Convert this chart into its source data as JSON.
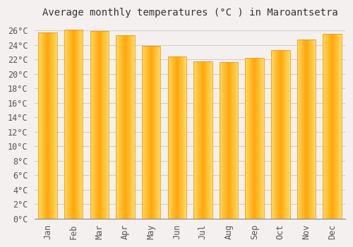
{
  "title": "Average monthly temperatures (°C ) in Maroantsetra",
  "months": [
    "Jan",
    "Feb",
    "Mar",
    "Apr",
    "May",
    "Jun",
    "Jul",
    "Aug",
    "Sep",
    "Oct",
    "Nov",
    "Dec"
  ],
  "values": [
    25.8,
    26.1,
    25.9,
    25.4,
    23.9,
    22.4,
    21.8,
    21.7,
    22.2,
    23.3,
    24.8,
    25.6
  ],
  "bar_color": "#FFA020",
  "bar_edge_color": "#FFB84D",
  "ylim": [
    0,
    27
  ],
  "ytick_step": 2,
  "background_color": "#F5F0F0",
  "plot_bg_color": "#F5F0F0",
  "grid_color": "#CCCCCC",
  "title_fontsize": 10,
  "tick_fontsize": 8.5,
  "title_color": "#333333",
  "tick_color": "#555555"
}
